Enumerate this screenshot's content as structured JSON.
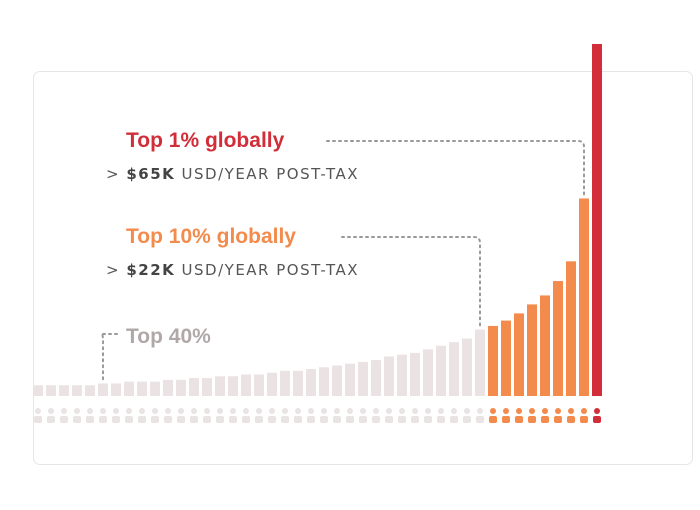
{
  "chart_data": {
    "type": "bar",
    "title": "",
    "xlabel": "",
    "ylabel": "",
    "description_units": "relative income, 44 population groups ordered poorest to richest",
    "values": [
      3,
      3,
      3,
      3,
      3,
      3.5,
      3.5,
      4,
      4,
      4,
      4.5,
      4.5,
      5,
      5,
      5.5,
      5.5,
      6,
      6,
      6.5,
      7,
      7,
      7.5,
      8,
      8.5,
      9,
      9.5,
      10,
      11,
      11.5,
      12,
      13,
      14,
      15,
      16,
      18.5,
      19.5,
      21,
      23,
      25.5,
      28,
      32,
      37.5,
      55,
      98
    ],
    "groups": [
      {
        "name": "Top 40%",
        "from_index": 0,
        "to_index": 34,
        "color": "#ebe3e3"
      },
      {
        "name": "Top 10%",
        "from_index": 35,
        "to_index": 42,
        "color": "#f28b4c"
      },
      {
        "name": "Top 1%",
        "from_index": 43,
        "to_index": 43,
        "color": "#d12e3a"
      }
    ]
  },
  "annotations": {
    "top1": {
      "title": "Top 1% globally",
      "prefix": "> ",
      "amount": "$65K",
      "suffix": " USD/YEAR POST-TAX",
      "color": "#d12e3a"
    },
    "top10": {
      "title": "Top 10% globally",
      "prefix": "> ",
      "amount": "$22K",
      "suffix": " USD/YEAR POST-TAX",
      "color": "#f28b4c"
    },
    "top40": {
      "title": "Top 40%",
      "color": "#b0a8a8"
    }
  },
  "colors": {
    "connector": "#999999",
    "people_grey": "#e9e3e3"
  }
}
